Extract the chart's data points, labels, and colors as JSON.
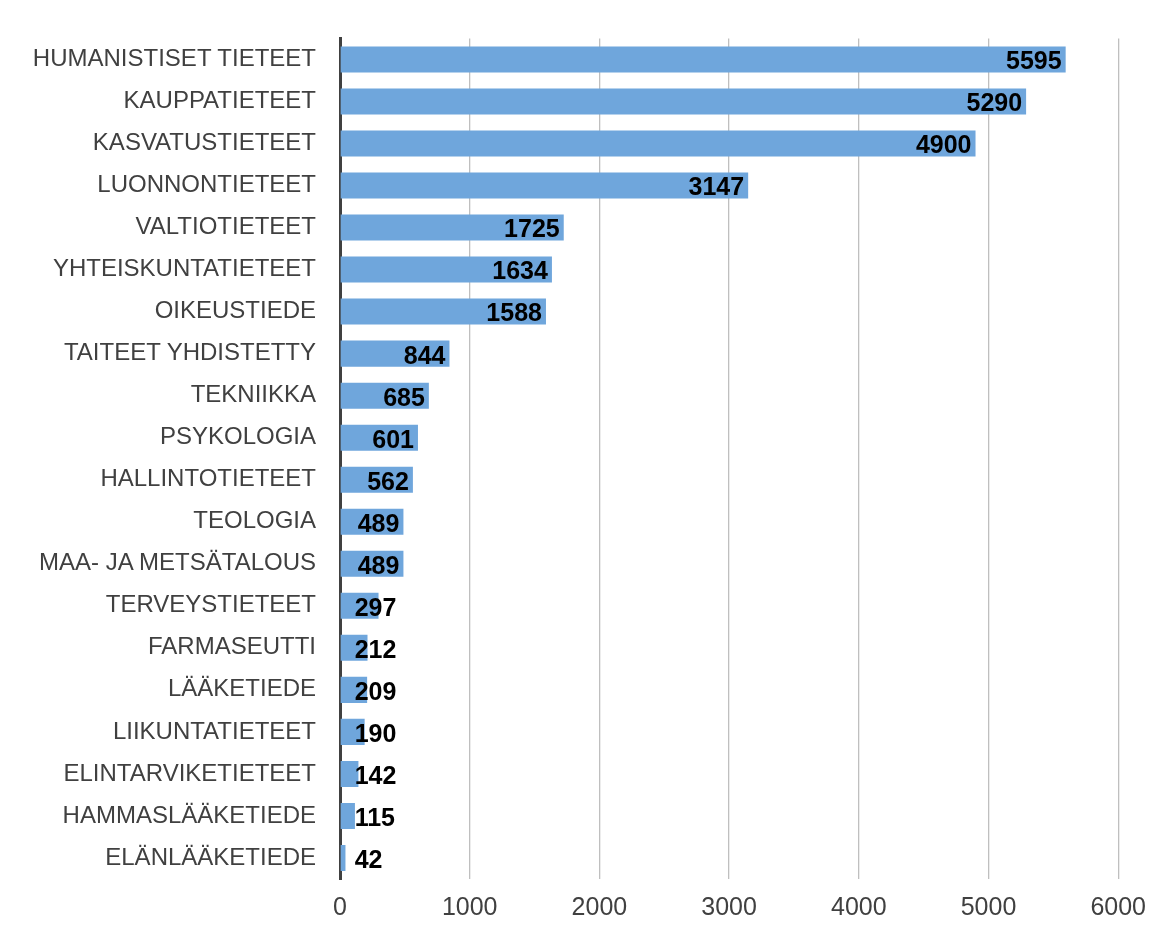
{
  "chart_data": {
    "type": "bar",
    "orientation": "horizontal",
    "categories": [
      "HUMANISTISET TIETEET",
      "KAUPPATIETEET",
      "KASVATUSTIETEET",
      "LUONNONTIETEET",
      "VALTIOTIETEET",
      "YHTEISKUNTATIETEET",
      "OIKEUSTIEDE",
      "TAITEET YHDISTETTY",
      "TEKNIIKKA",
      "PSYKOLOGIA",
      "HALLINTOTIETEET",
      "TEOLOGIA",
      "MAA- JA METSÄTALOUS",
      "TERVEYSTIETEET",
      "FARMASEUTTI",
      "LÄÄKETIEDE",
      "LIIKUNTATIETEET",
      "ELINTARVIKETIETEET",
      "HAMMASLÄÄKETIEDE",
      "ELÄNLÄÄKETIEDE"
    ],
    "values": [
      5595,
      5290,
      4900,
      3147,
      1725,
      1634,
      1588,
      844,
      685,
      601,
      562,
      489,
      489,
      297,
      212,
      209,
      190,
      142,
      115,
      42
    ],
    "color": "#6fa6dc",
    "xlim": [
      0,
      6000
    ],
    "xticks": [
      0,
      1000,
      2000,
      3000,
      4000,
      5000,
      6000
    ],
    "grid": "x",
    "legend": false,
    "data_labels": true
  }
}
